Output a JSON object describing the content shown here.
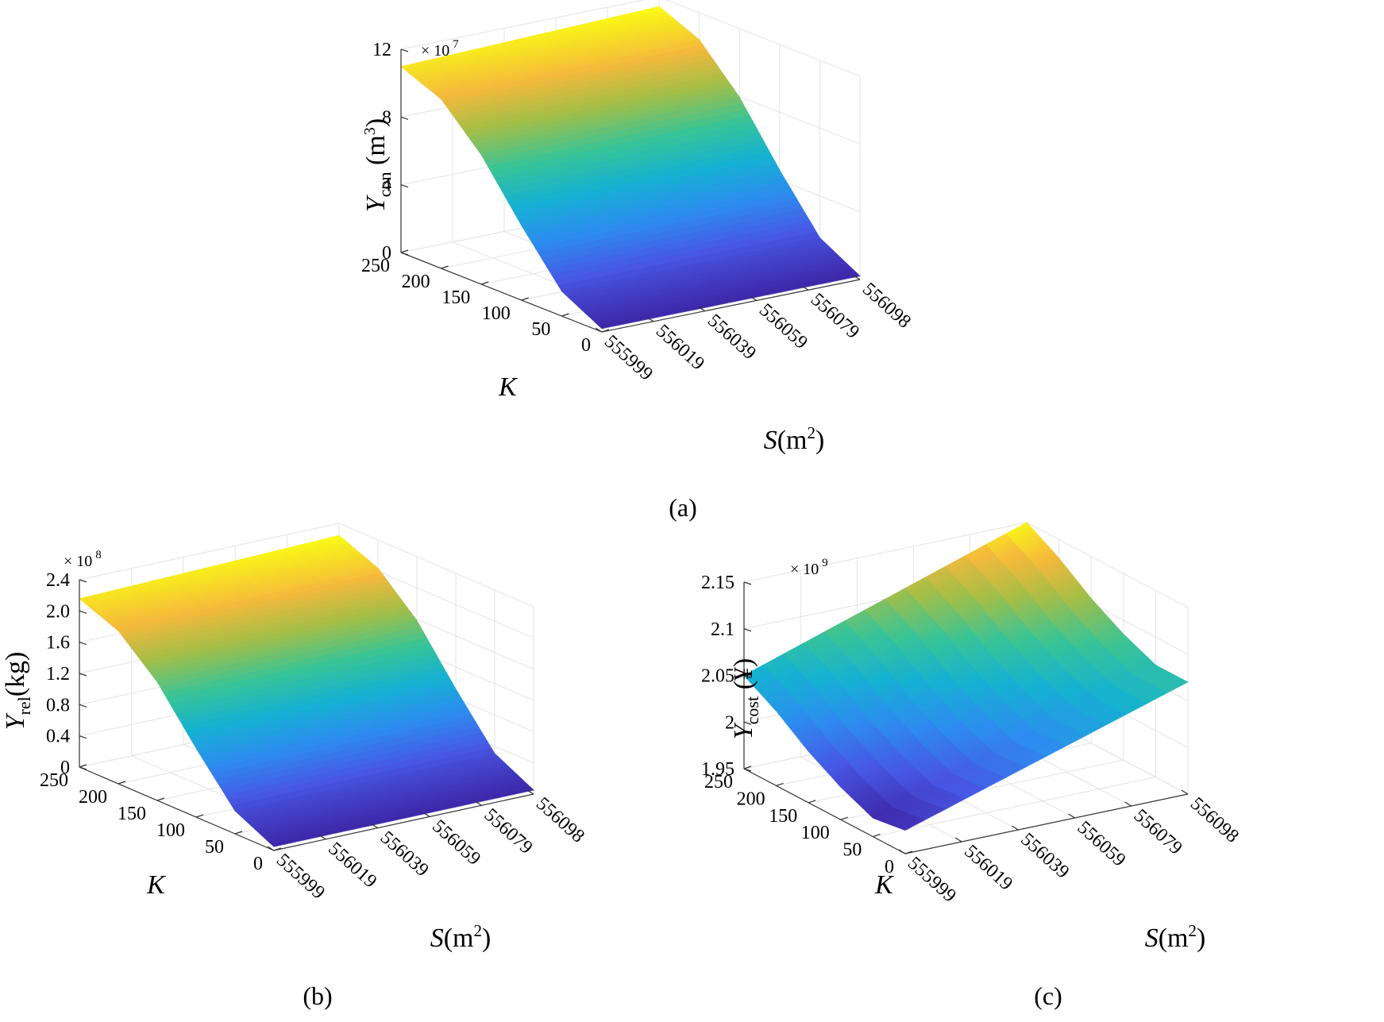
{
  "chart_data": [
    {
      "id": "a",
      "type": "surface3d",
      "caption": "(a)",
      "zlabel": {
        "var": "Y",
        "sub": "con",
        "unit": " (m",
        "sup": "3",
        "close": ")"
      },
      "ylabel": "K",
      "xlabel": {
        "var": "S",
        "unit": "(m",
        "sup": "2",
        "close": ")"
      },
      "x_ticks": [
        "555999",
        "556019",
        "556039",
        "556059",
        "556079",
        "556098"
      ],
      "y_ticks": [
        "0",
        "50",
        "100",
        "150",
        "200",
        "250"
      ],
      "z_ticks": [
        "0",
        "4",
        "8",
        "12"
      ],
      "z_multiplier": {
        "base": "× 10",
        "exp": "7"
      },
      "xlim": [
        555999,
        556098
      ],
      "ylim": [
        0,
        250
      ],
      "zlim": [
        0,
        12
      ],
      "z_units_scale": 10000000,
      "surface_trend": "rises with K (0 at K=0 to ~11.2 at K=250); nearly flat along S",
      "sample_values": {
        "K": [
          0,
          50,
          100,
          150,
          200,
          250
        ],
        "Z": [
          0.2,
          1.5,
          4.5,
          7.8,
          10.2,
          11.2
        ]
      }
    },
    {
      "id": "b",
      "type": "surface3d",
      "caption": "(b)",
      "zlabel": {
        "var": "Y",
        "sub": "rel",
        "unit": "(kg)",
        "sup": "",
        "close": ""
      },
      "ylabel": "K",
      "xlabel": {
        "var": "S",
        "unit": "(m",
        "sup": "2",
        "close": ")"
      },
      "x_ticks": [
        "555999",
        "556019",
        "556039",
        "556059",
        "556079",
        "556098"
      ],
      "y_ticks": [
        "0",
        "50",
        "100",
        "150",
        "200",
        "250"
      ],
      "z_ticks": [
        "0",
        "0.4",
        "0.8",
        "1.2",
        "1.6",
        "2.0",
        "2.4"
      ],
      "z_multiplier": {
        "base": "× 10",
        "exp": "8"
      },
      "xlim": [
        555999,
        556098
      ],
      "ylim": [
        0,
        250
      ],
      "zlim": [
        0,
        2.4
      ],
      "z_units_scale": 100000000,
      "surface_trend": "rises with K (0 at K=0 to ~2.2 at K=250); nearly flat along S",
      "sample_values": {
        "K": [
          0,
          50,
          100,
          150,
          200,
          250
        ],
        "Z": [
          0.05,
          0.3,
          0.9,
          1.55,
          2.0,
          2.2
        ]
      }
    },
    {
      "id": "c",
      "type": "surface3d",
      "caption": "(c)",
      "zlabel": {
        "var": "Y",
        "sub": "cost",
        "unit": " (¥)",
        "sup": "",
        "close": ""
      },
      "ylabel": "K",
      "xlabel": {
        "var": "S",
        "unit": "(m",
        "sup": "2",
        "close": ")"
      },
      "x_ticks": [
        "555999",
        "556019",
        "556039",
        "556059",
        "556079",
        "556098"
      ],
      "y_ticks": [
        "0",
        "50",
        "100",
        "150",
        "200",
        "250"
      ],
      "z_ticks": [
        "1.95",
        "2",
        "2.05",
        "2.1",
        "2.15"
      ],
      "z_multiplier": {
        "base": "× 10",
        "exp": "9"
      },
      "xlim": [
        555999,
        556098
      ],
      "ylim": [
        0,
        250
      ],
      "zlim": [
        1.95,
        2.15
      ],
      "z_units_scale": 1000000000,
      "surface_trend": "minimum ~1.97 near K≈40; increases with K (~2.05 at K=250) and with S (+~0.1 over S range)",
      "sample_values": {
        "K": [
          0,
          50,
          100,
          150,
          200,
          250
        ],
        "Z_at_S_min": [
          1.975,
          1.97,
          1.985,
          2.005,
          2.03,
          2.05
        ],
        "Z_at_S_max": [
          2.07,
          2.07,
          2.085,
          2.105,
          2.13,
          2.15
        ]
      }
    }
  ]
}
